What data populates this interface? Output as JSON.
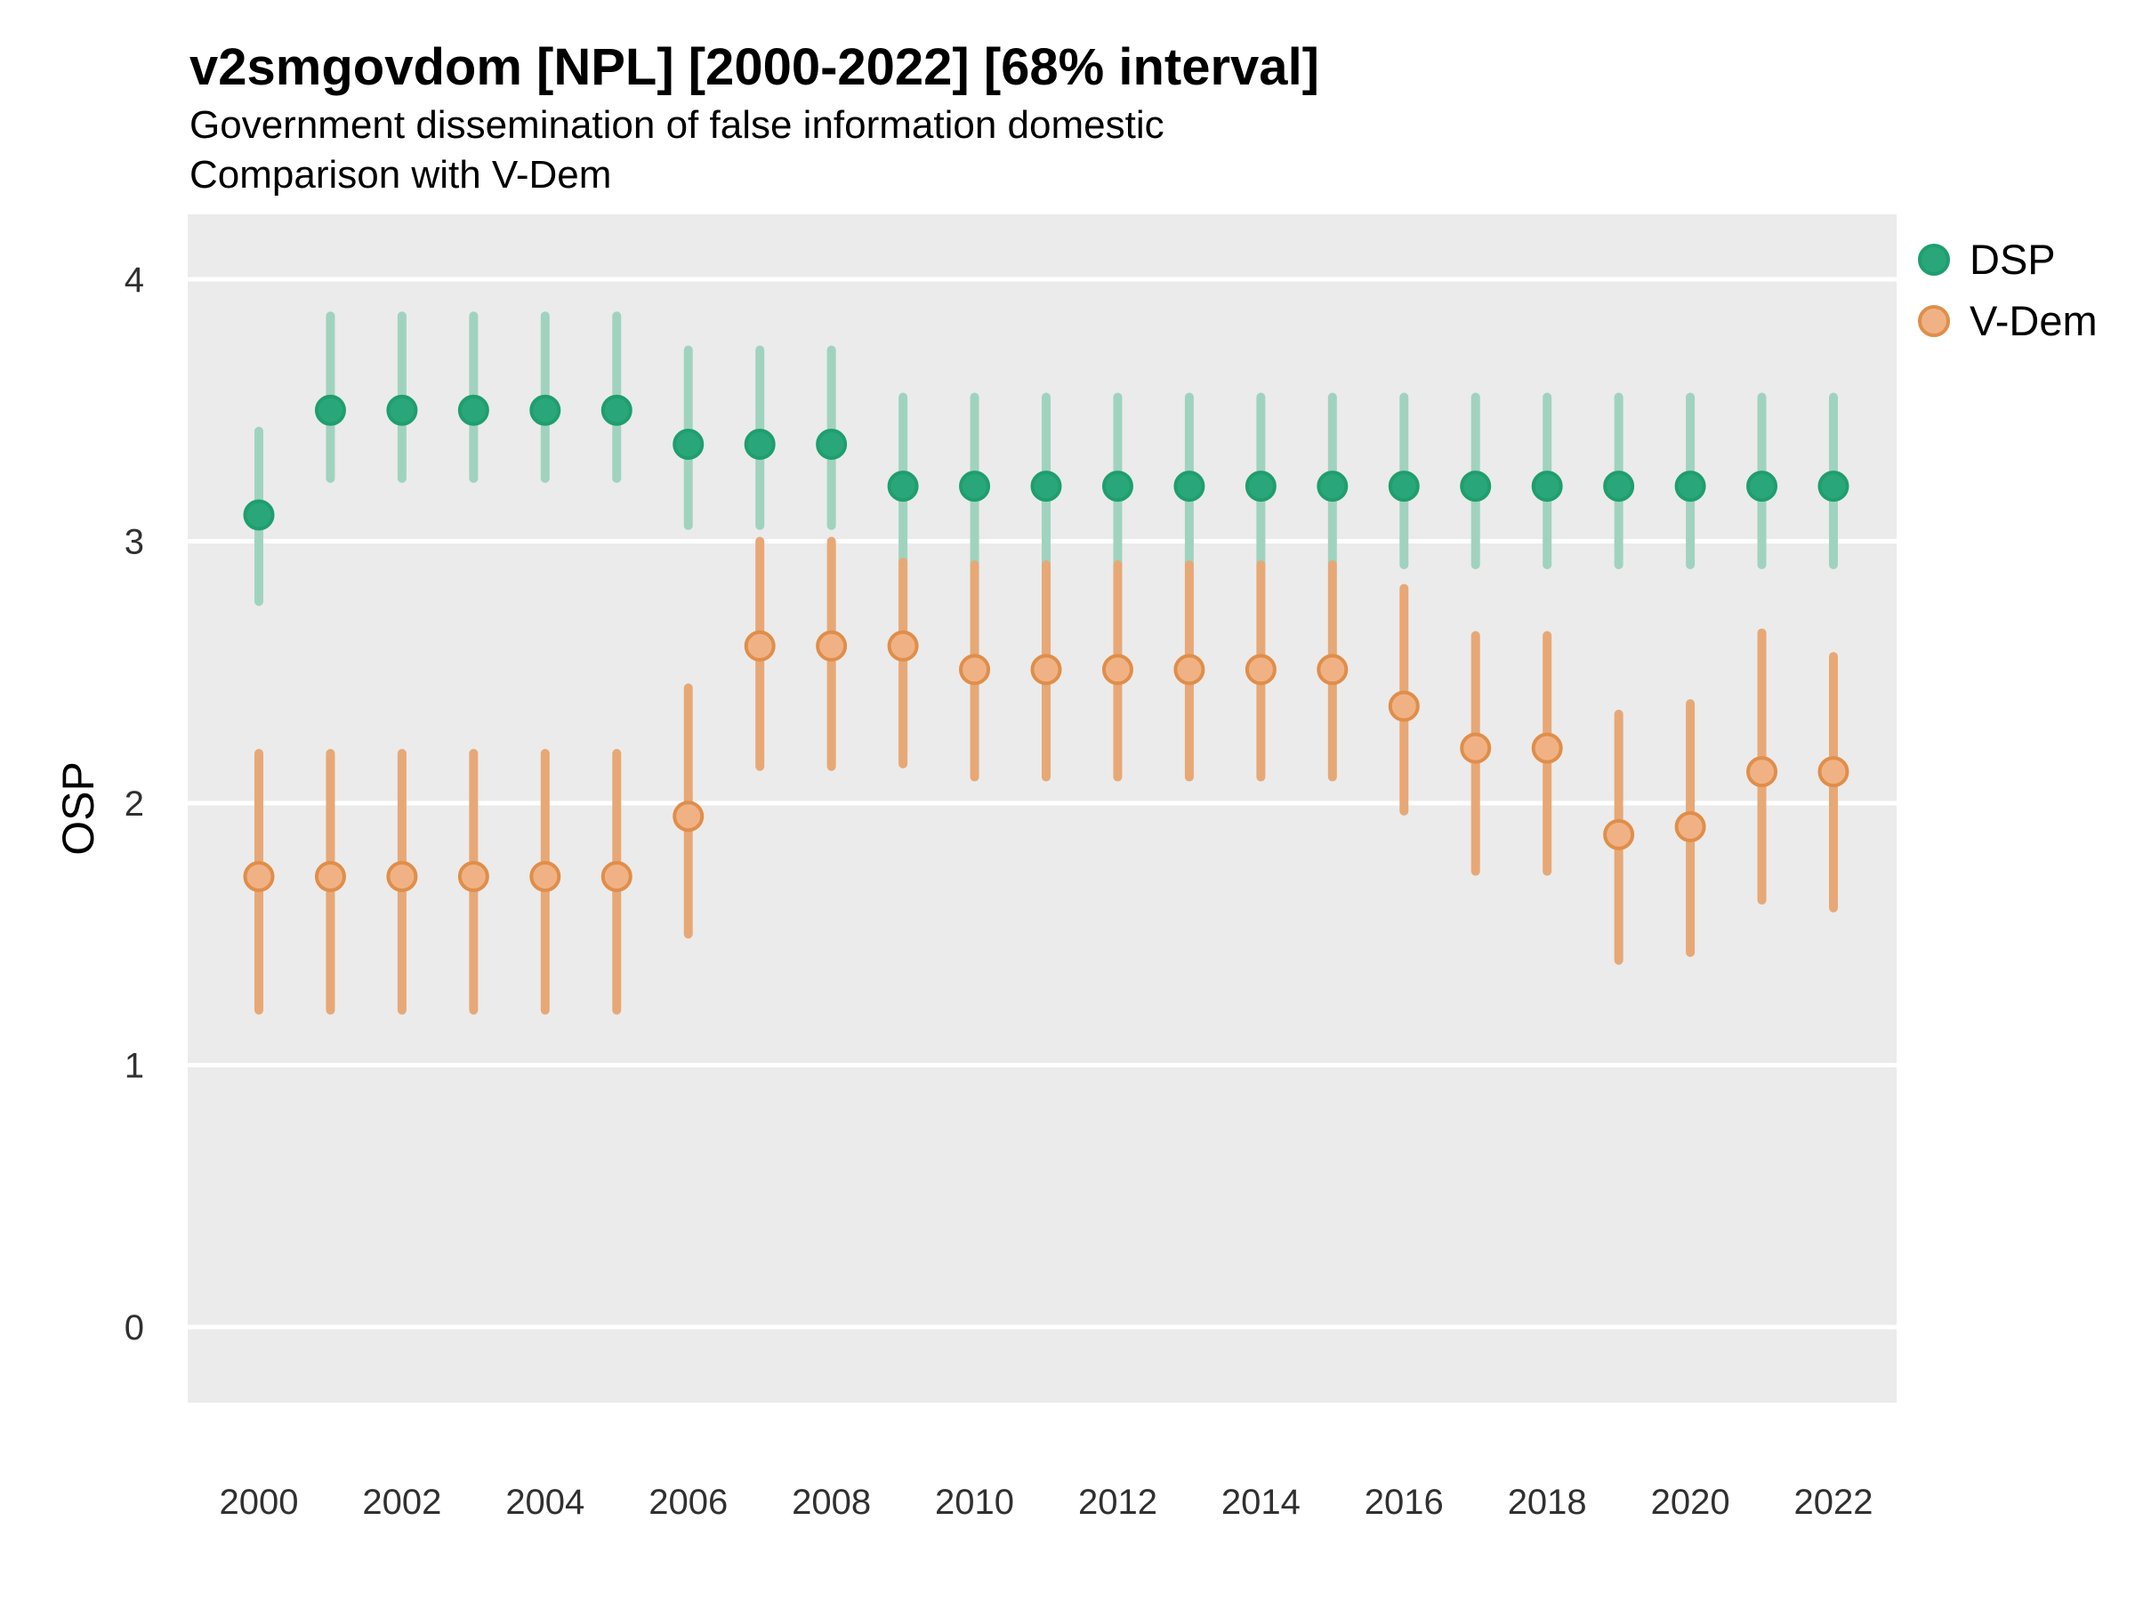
{
  "header": {
    "title": "v2smgovdom [NPL] [2000-2022] [68% interval]",
    "subtitle_1": "Government dissemination of false information domestic",
    "subtitle_2": "Comparison with V-Dem"
  },
  "axes": {
    "y_title": "OSP",
    "y_ticks": [
      0,
      1,
      2,
      3,
      4
    ],
    "x_ticks": [
      2000,
      2002,
      2004,
      2006,
      2008,
      2010,
      2012,
      2014,
      2016,
      2018,
      2020,
      2022
    ]
  },
  "legend": {
    "entries": [
      {
        "label": "DSP",
        "color": "#2aa77a",
        "stroke": "#1f9e6e"
      },
      {
        "label": "V-Dem",
        "color": "#f0b284",
        "stroke": "#e08e4a"
      }
    ]
  },
  "style": {
    "panel_background": "#ebebeb",
    "gridline_color": "#ffffff",
    "tick_label_color": "#303030"
  },
  "chart_data": {
    "type": "pointrange",
    "title": "v2smgovdom [NPL] [2000-2022] [68% interval]",
    "subtitle": [
      "Government dissemination of false information domestic",
      "Comparison with V-Dem"
    ],
    "ylabel": "OSP",
    "xlabel": "",
    "interval": "68%",
    "ylim": [
      -0.3,
      4.25
    ],
    "xlim": [
      1999,
      2023
    ],
    "grid": "major-horizontal-white-on-grey",
    "legend_position": "right",
    "x": [
      2000,
      2001,
      2002,
      2003,
      2004,
      2005,
      2006,
      2007,
      2008,
      2009,
      2010,
      2011,
      2012,
      2013,
      2014,
      2015,
      2016,
      2017,
      2018,
      2019,
      2020,
      2021,
      2022
    ],
    "series": [
      {
        "name": "DSP",
        "point_color": "#2aa77a",
        "point_stroke": "#1f9e6e",
        "line_color": "#a0d3bf",
        "values": [
          3.1,
          3.5,
          3.5,
          3.5,
          3.5,
          3.5,
          3.37,
          3.37,
          3.37,
          3.21,
          3.21,
          3.21,
          3.21,
          3.21,
          3.21,
          3.21,
          3.21,
          3.21,
          3.21,
          3.21,
          3.21,
          3.21,
          3.21
        ],
        "lower": [
          2.77,
          3.24,
          3.24,
          3.24,
          3.24,
          3.24,
          3.06,
          3.06,
          3.06,
          2.91,
          2.91,
          2.91,
          2.91,
          2.91,
          2.91,
          2.91,
          2.91,
          2.91,
          2.91,
          2.91,
          2.91,
          2.91,
          2.91
        ],
        "upper": [
          3.42,
          3.86,
          3.86,
          3.86,
          3.86,
          3.86,
          3.73,
          3.73,
          3.73,
          3.55,
          3.55,
          3.55,
          3.55,
          3.55,
          3.55,
          3.55,
          3.55,
          3.55,
          3.55,
          3.55,
          3.55,
          3.55,
          3.55
        ]
      },
      {
        "name": "V-Dem",
        "point_color": "#f0b284",
        "point_stroke": "#e08e4a",
        "line_color": "#e7a876",
        "values": [
          1.72,
          1.72,
          1.72,
          1.72,
          1.72,
          1.72,
          1.95,
          2.6,
          2.6,
          2.6,
          2.51,
          2.51,
          2.51,
          2.51,
          2.51,
          2.51,
          2.37,
          2.21,
          2.21,
          1.88,
          1.91,
          2.12,
          2.12
        ],
        "lower": [
          1.21,
          1.21,
          1.21,
          1.21,
          1.21,
          1.21,
          1.5,
          2.14,
          2.14,
          2.15,
          2.1,
          2.1,
          2.1,
          2.1,
          2.1,
          2.1,
          1.97,
          1.74,
          1.74,
          1.4,
          1.43,
          1.63,
          1.6
        ],
        "upper": [
          2.19,
          2.19,
          2.19,
          2.19,
          2.19,
          2.19,
          2.44,
          3.0,
          3.0,
          2.92,
          2.91,
          2.91,
          2.91,
          2.91,
          2.91,
          2.91,
          2.82,
          2.64,
          2.64,
          2.34,
          2.38,
          2.65,
          2.56
        ]
      }
    ]
  }
}
